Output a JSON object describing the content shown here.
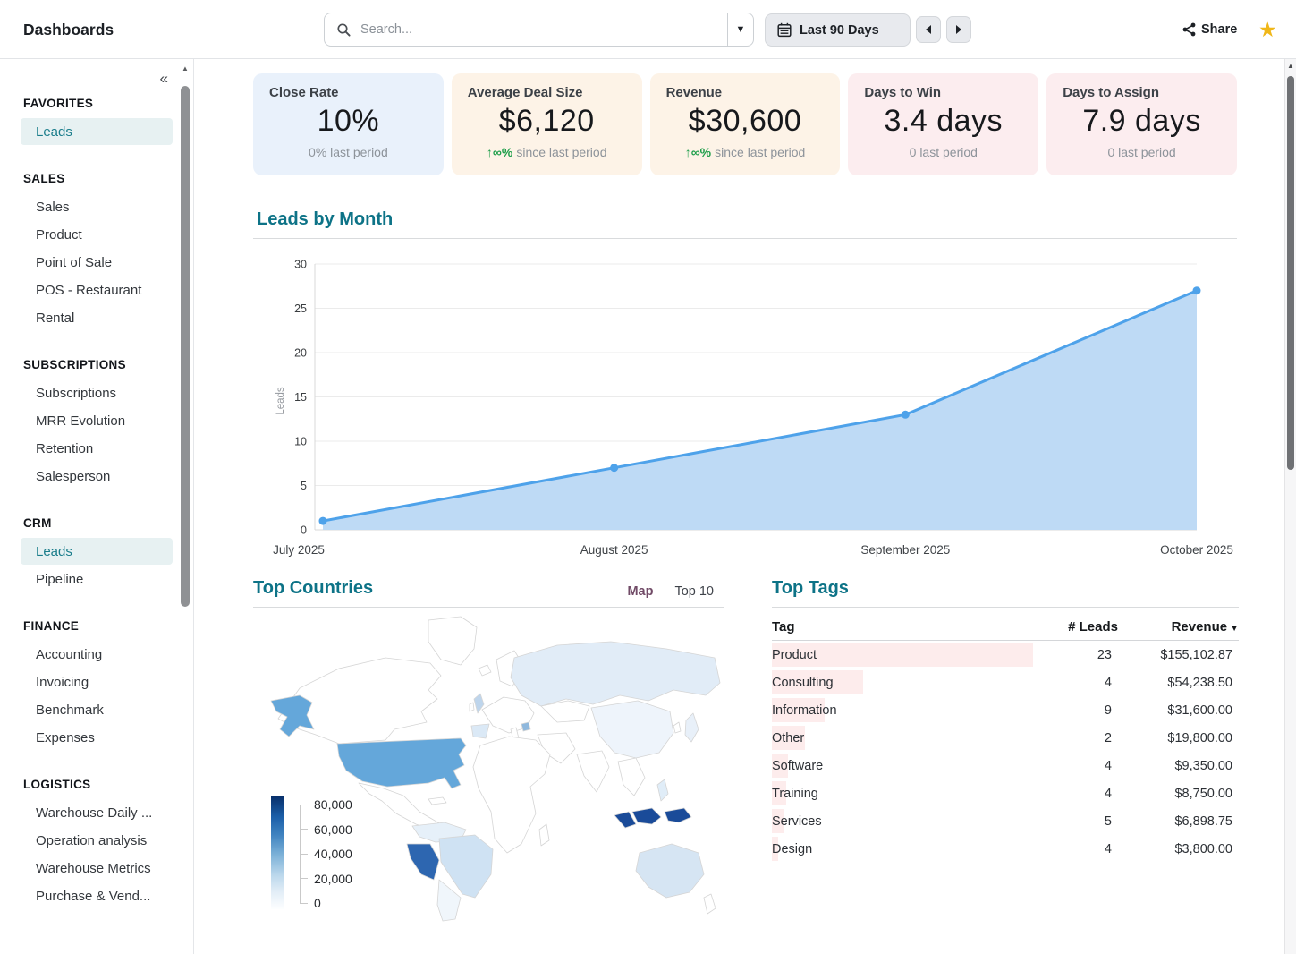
{
  "header": {
    "app_title": "Dashboards",
    "search_placeholder": "Search...",
    "date_range_label": "Last 90 Days",
    "share_label": "Share"
  },
  "sidebar": {
    "sections": [
      {
        "title": "FAVORITES",
        "items": [
          {
            "label": "Leads",
            "active": true
          }
        ]
      },
      {
        "title": "SALES",
        "items": [
          {
            "label": "Sales"
          },
          {
            "label": "Product"
          },
          {
            "label": "Point of Sale"
          },
          {
            "label": "POS - Restaurant"
          },
          {
            "label": "Rental"
          }
        ]
      },
      {
        "title": "SUBSCRIPTIONS",
        "items": [
          {
            "label": "Subscriptions"
          },
          {
            "label": "MRR Evolution"
          },
          {
            "label": "Retention"
          },
          {
            "label": "Salesperson"
          }
        ]
      },
      {
        "title": "CRM",
        "items": [
          {
            "label": "Leads",
            "active": true
          },
          {
            "label": "Pipeline"
          }
        ]
      },
      {
        "title": "FINANCE",
        "items": [
          {
            "label": "Accounting"
          },
          {
            "label": "Invoicing"
          },
          {
            "label": "Benchmark"
          },
          {
            "label": "Expenses"
          }
        ]
      },
      {
        "title": "LOGISTICS",
        "items": [
          {
            "label": "Warehouse Daily ..."
          },
          {
            "label": "Operation analysis"
          },
          {
            "label": "Warehouse Metrics"
          },
          {
            "label": "Purchase & Vend..."
          }
        ]
      }
    ]
  },
  "kpis": [
    {
      "title": "Close Rate",
      "value": "10%",
      "delta_highlight": "",
      "delta_text": "0% last period",
      "tint": "blue"
    },
    {
      "title": "Average Deal Size",
      "value": "$6,120",
      "delta_highlight": "↑∞%",
      "delta_text": "since last period",
      "tint": "peach"
    },
    {
      "title": "Revenue",
      "value": "$30,600",
      "delta_highlight": "↑∞%",
      "delta_text": "since last period",
      "tint": "peach"
    },
    {
      "title": "Days to Win",
      "value": "3.4 days",
      "delta_highlight": "",
      "delta_text": "0 last period",
      "tint": "pink"
    },
    {
      "title": "Days to Assign",
      "value": "7.9 days",
      "delta_highlight": "",
      "delta_text": "0 last period",
      "tint": "pink"
    }
  ],
  "chart_data": {
    "type": "area",
    "title": "Leads by Month",
    "x": [
      "July 2025",
      "August 2025",
      "September 2025",
      "October 2025"
    ],
    "values": [
      1,
      7,
      13,
      27
    ],
    "xlabel": "",
    "ylabel": "Leads",
    "ylim": [
      0,
      30
    ],
    "ytick_step": 5,
    "grid": true,
    "line_color": "#4ea2ea",
    "fill_color": "#bedaf5"
  },
  "top_countries": {
    "title": "Top Countries",
    "tabs": [
      {
        "label": "Map",
        "active": true
      },
      {
        "label": "Top 10",
        "active": false
      }
    ],
    "legend": {
      "ticks": [
        "80,000",
        "60,000",
        "40,000",
        "20,000",
        "0"
      ]
    },
    "map_shading": [
      {
        "country": "united-states",
        "color": "#64a7da"
      },
      {
        "country": "peru",
        "color": "#2d66b0"
      },
      {
        "country": "indonesia",
        "color": "#1a4b99"
      },
      {
        "country": "brazil",
        "color": "#cfe2f3"
      },
      {
        "country": "australia",
        "color": "#d6e5f3"
      },
      {
        "country": "russia",
        "color": "#e1ecf7"
      },
      {
        "country": "united-kingdom",
        "color": "#bed5ec"
      }
    ]
  },
  "top_tags": {
    "title": "Top Tags",
    "columns": {
      "tag": "Tag",
      "leads": "# Leads",
      "revenue": "Revenue"
    },
    "rows": [
      {
        "tag": "Product",
        "leads": "23",
        "revenue": "$155,102.87",
        "revenue_value": 155102.87
      },
      {
        "tag": "Consulting",
        "leads": "4",
        "revenue": "$54,238.50",
        "revenue_value": 54238.5
      },
      {
        "tag": "Information",
        "leads": "9",
        "revenue": "$31,600.00",
        "revenue_value": 31600.0
      },
      {
        "tag": "Other",
        "leads": "2",
        "revenue": "$19,800.00",
        "revenue_value": 19800.0
      },
      {
        "tag": "Software",
        "leads": "4",
        "revenue": "$9,350.00",
        "revenue_value": 9350.0
      },
      {
        "tag": "Training",
        "leads": "4",
        "revenue": "$8,750.00",
        "revenue_value": 8750.0
      },
      {
        "tag": "Services",
        "leads": "5",
        "revenue": "$6,898.75",
        "revenue_value": 6898.75
      },
      {
        "tag": "Design",
        "leads": "4",
        "revenue": "$3,800.00",
        "revenue_value": 3800.0
      }
    ]
  }
}
